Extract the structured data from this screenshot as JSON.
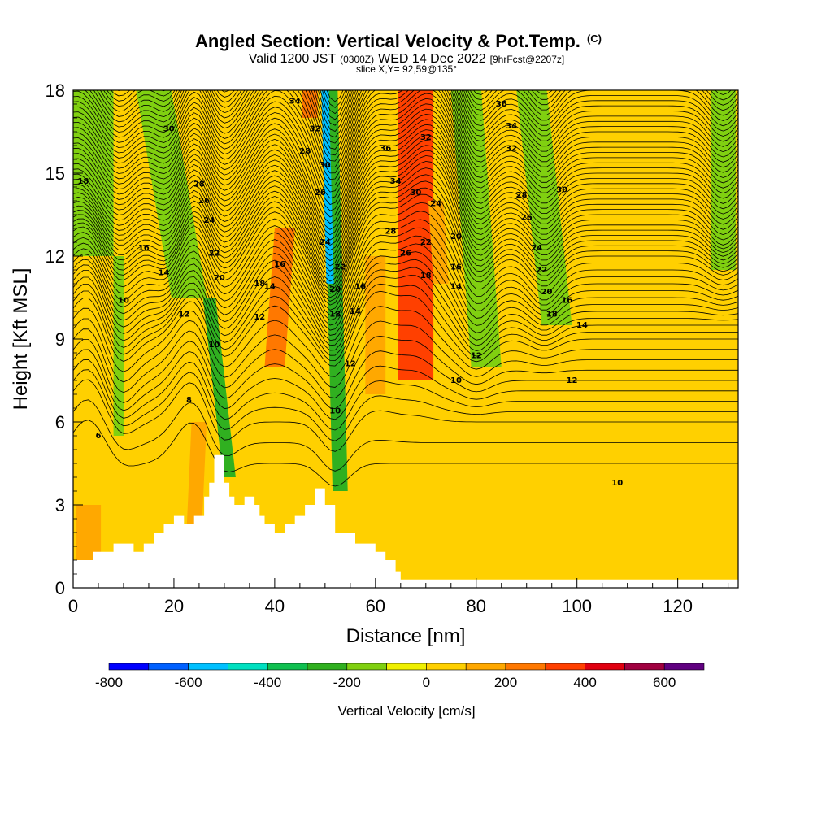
{
  "title": {
    "main": "Angled Section: Vertical Velocity & Pot.Temp.",
    "main_suffix": "(C)",
    "valid_prefix": "Valid 1200 JST",
    "valid_utc": "(0300Z)",
    "valid_date": "WED 14 Dec 2022",
    "valid_forecast": "[9hrFcst@2207z]",
    "slice": "slice X,Y= 92,59@135°"
  },
  "chart_data": {
    "type": "heatmap",
    "title": "Angled Section: Vertical Velocity & Pot.Temp. (C)",
    "xlabel": "Distance [nm]",
    "ylabel": "Height [Kft MSL]",
    "xlim": [
      0,
      132
    ],
    "ylim": [
      0,
      18
    ],
    "x_ticks": [
      0,
      20,
      40,
      60,
      80,
      100,
      120
    ],
    "x_tick_labels": [
      "0",
      "20",
      "40",
      "60",
      "80",
      "100",
      "120"
    ],
    "y_ticks": [
      0,
      3,
      6,
      9,
      12,
      15,
      18
    ],
    "y_tick_labels": [
      "0",
      "3",
      "6",
      "9",
      "12",
      "15",
      "18"
    ],
    "colorbar": {
      "title": "Vertical Velocity [cm/s]",
      "boundaries": [
        -800,
        -700,
        -600,
        -500,
        -400,
        -300,
        -200,
        -100,
        0,
        100,
        200,
        300,
        400,
        500,
        600,
        700
      ],
      "tick_values": [
        -800,
        -600,
        -400,
        -200,
        0,
        200,
        400,
        600
      ],
      "tick_labels": [
        "-800",
        "-600",
        "-400",
        "-200",
        "0",
        "200",
        "400",
        "600"
      ],
      "colors": [
        "#0000ff",
        "#0060ff",
        "#00c0ff",
        "#00e0c0",
        "#10c050",
        "#30b020",
        "#80d010",
        "#f0f000",
        "#ffd000",
        "#ffa800",
        "#ff7800",
        "#ff4000",
        "#e00010",
        "#a00040",
        "#600080"
      ]
    },
    "updraft_bands": [
      {
        "x": 68,
        "x_top": 68,
        "width": 7,
        "y_bottom": 7.5,
        "y_top": 18,
        "value": 350
      },
      {
        "x": 40,
        "x_top": 42,
        "width": 4,
        "y_bottom": 8,
        "y_top": 13,
        "value": 250
      },
      {
        "x": 47,
        "x_top": 47,
        "width": 3,
        "y_bottom": 17,
        "y_top": 18,
        "value": 250
      },
      {
        "x": 73,
        "x_top": 72,
        "width": 3,
        "y_bottom": 11,
        "y_top": 14,
        "value": 150
      },
      {
        "x": 60,
        "x_top": 60,
        "width": 4,
        "y_bottom": 7,
        "y_top": 12,
        "value": 150
      },
      {
        "x": 24,
        "x_top": 25,
        "width": 3,
        "y_bottom": 2,
        "y_top": 6,
        "value": 150
      },
      {
        "x": 3,
        "x_top": 3,
        "width": 5,
        "y_bottom": 1,
        "y_top": 3,
        "value": 150
      },
      {
        "x": 110,
        "x_top": 110,
        "width": 4,
        "y_bottom": 14,
        "y_top": 18,
        "value": 50
      },
      {
        "x": 125,
        "x_top": 125,
        "width": 6,
        "y_bottom": 0.2,
        "y_top": 12,
        "value": 50
      }
    ],
    "downdraft_bands": [
      {
        "x": 4,
        "x_top": 4,
        "width": 8,
        "y_bottom": 12,
        "y_top": 18,
        "value": -150
      },
      {
        "x": 9,
        "x_top": 9,
        "width": 2,
        "y_bottom": 5.5,
        "y_top": 12,
        "value": -150
      },
      {
        "x": 23,
        "x_top": 16,
        "width": 7,
        "y_bottom": 10.5,
        "y_top": 18,
        "value": -150
      },
      {
        "x": 31,
        "x_top": 27,
        "width": 2.5,
        "y_bottom": 4,
        "y_top": 10.5,
        "value": -250
      },
      {
        "x": 53,
        "x_top": 51,
        "width": 3,
        "y_bottom": 3.5,
        "y_top": 18,
        "value": -250
      },
      {
        "x": 51,
        "x_top": 50,
        "width": 1.5,
        "y_bottom": 11,
        "y_top": 18,
        "value": -550
      },
      {
        "x": 82,
        "x_top": 78,
        "width": 6,
        "y_bottom": 8,
        "y_top": 18,
        "value": -150
      },
      {
        "x": 96,
        "x_top": 91,
        "width": 6,
        "y_bottom": 9.5,
        "y_top": 18,
        "value": -150
      },
      {
        "x": 129,
        "x_top": 129,
        "width": 5,
        "y_bottom": 11.5,
        "y_top": 18,
        "value": -150
      }
    ],
    "terrain": {
      "x": [
        0,
        4,
        4,
        8,
        8,
        12,
        12,
        14,
        14,
        16,
        16,
        18,
        18,
        20,
        20,
        22,
        22,
        24,
        24,
        26,
        26,
        27,
        27,
        28,
        28,
        30,
        30,
        31,
        31,
        32,
        32,
        34,
        34,
        36,
        36,
        37,
        37,
        38,
        38,
        39,
        39,
        40,
        40,
        42,
        42,
        44,
        44,
        46,
        46,
        48,
        48,
        50,
        50,
        52,
        52,
        54,
        54,
        56,
        56,
        60,
        60,
        62,
        62,
        64,
        64,
        65,
        65,
        66,
        66,
        68,
        68,
        132
      ],
      "y": [
        1.0,
        1.0,
        1.3,
        1.3,
        1.6,
        1.6,
        1.3,
        1.3,
        1.6,
        1.6,
        2.0,
        2.0,
        2.3,
        2.3,
        2.6,
        2.6,
        2.3,
        2.3,
        2.6,
        2.6,
        3.3,
        3.3,
        3.8,
        3.8,
        4.8,
        4.8,
        3.8,
        3.8,
        3.3,
        3.3,
        3.0,
        3.0,
        3.3,
        3.3,
        3.0,
        3.0,
        2.6,
        2.6,
        2.3,
        2.3,
        2.3,
        2.3,
        2.0,
        2.0,
        2.3,
        2.3,
        2.6,
        2.6,
        3.0,
        3.0,
        3.6,
        3.6,
        3.0,
        3.0,
        2.0,
        2.0,
        2.0,
        2.0,
        1.6,
        1.6,
        1.3,
        1.3,
        1.0,
        1.0,
        0.6,
        0.6,
        0.3,
        0.3,
        0.3,
        0.3,
        0.3,
        0.3
      ]
    },
    "theta_levels": [
      6,
      8,
      10,
      12,
      14,
      16,
      18,
      20,
      22,
      24,
      26,
      28,
      30,
      32,
      34,
      36
    ],
    "theta_base_profile": {
      "height": [
        0,
        3,
        6,
        9,
        12,
        15,
        18
      ],
      "theta": [
        4,
        5,
        7,
        11,
        17,
        25,
        33
      ]
    },
    "contour_labels": [
      {
        "x": 2,
        "y": 14.7,
        "text": "18"
      },
      {
        "x": 19,
        "y": 16.6,
        "text": "30"
      },
      {
        "x": 25,
        "y": 14.6,
        "text": "28"
      },
      {
        "x": 26,
        "y": 14.0,
        "text": "26"
      },
      {
        "x": 27,
        "y": 13.3,
        "text": "24"
      },
      {
        "x": 28,
        "y": 12.1,
        "text": "22"
      },
      {
        "x": 29,
        "y": 11.2,
        "text": "20"
      },
      {
        "x": 14,
        "y": 12.3,
        "text": "16"
      },
      {
        "x": 18,
        "y": 11.4,
        "text": "14"
      },
      {
        "x": 10,
        "y": 10.4,
        "text": "10"
      },
      {
        "x": 22,
        "y": 9.9,
        "text": "12"
      },
      {
        "x": 28,
        "y": 8.8,
        "text": "10"
      },
      {
        "x": 23,
        "y": 6.8,
        "text": "8"
      },
      {
        "x": 5,
        "y": 5.5,
        "text": "6"
      },
      {
        "x": 37,
        "y": 11.0,
        "text": "18"
      },
      {
        "x": 41,
        "y": 11.7,
        "text": "16"
      },
      {
        "x": 39,
        "y": 10.9,
        "text": "14"
      },
      {
        "x": 37,
        "y": 9.8,
        "text": "12"
      },
      {
        "x": 44,
        "y": 17.6,
        "text": "34"
      },
      {
        "x": 48,
        "y": 16.6,
        "text": "32"
      },
      {
        "x": 46,
        "y": 15.8,
        "text": "28"
      },
      {
        "x": 50,
        "y": 15.3,
        "text": "30"
      },
      {
        "x": 49,
        "y": 14.3,
        "text": "26"
      },
      {
        "x": 50,
        "y": 12.5,
        "text": "24"
      },
      {
        "x": 53,
        "y": 11.6,
        "text": "22"
      },
      {
        "x": 52,
        "y": 10.8,
        "text": "20"
      },
      {
        "x": 57,
        "y": 10.9,
        "text": "16"
      },
      {
        "x": 52,
        "y": 9.9,
        "text": "18"
      },
      {
        "x": 56,
        "y": 10.0,
        "text": "14"
      },
      {
        "x": 55,
        "y": 8.1,
        "text": "12"
      },
      {
        "x": 52,
        "y": 6.4,
        "text": "10"
      },
      {
        "x": 62,
        "y": 15.9,
        "text": "36"
      },
      {
        "x": 64,
        "y": 14.7,
        "text": "34"
      },
      {
        "x": 70,
        "y": 16.3,
        "text": "32"
      },
      {
        "x": 68,
        "y": 14.3,
        "text": "30"
      },
      {
        "x": 63,
        "y": 12.9,
        "text": "28"
      },
      {
        "x": 66,
        "y": 12.1,
        "text": "26"
      },
      {
        "x": 72,
        "y": 13.9,
        "text": "24"
      },
      {
        "x": 70,
        "y": 12.5,
        "text": "22"
      },
      {
        "x": 76,
        "y": 12.7,
        "text": "20"
      },
      {
        "x": 70,
        "y": 11.3,
        "text": "18"
      },
      {
        "x": 76,
        "y": 11.6,
        "text": "16"
      },
      {
        "x": 76,
        "y": 10.9,
        "text": "14"
      },
      {
        "x": 80,
        "y": 8.4,
        "text": "12"
      },
      {
        "x": 76,
        "y": 7.5,
        "text": "10"
      },
      {
        "x": 85,
        "y": 17.5,
        "text": "36"
      },
      {
        "x": 87,
        "y": 16.7,
        "text": "34"
      },
      {
        "x": 87,
        "y": 15.9,
        "text": "32"
      },
      {
        "x": 89,
        "y": 14.2,
        "text": "28"
      },
      {
        "x": 97,
        "y": 14.4,
        "text": "30"
      },
      {
        "x": 90,
        "y": 13.4,
        "text": "26"
      },
      {
        "x": 92,
        "y": 12.3,
        "text": "24"
      },
      {
        "x": 93,
        "y": 11.5,
        "text": "22"
      },
      {
        "x": 94,
        "y": 10.7,
        "text": "20"
      },
      {
        "x": 95,
        "y": 9.9,
        "text": "18"
      },
      {
        "x": 98,
        "y": 10.4,
        "text": "16"
      },
      {
        "x": 101,
        "y": 9.5,
        "text": "14"
      },
      {
        "x": 99,
        "y": 7.5,
        "text": "12"
      },
      {
        "x": 108,
        "y": 3.8,
        "text": "10"
      }
    ]
  }
}
